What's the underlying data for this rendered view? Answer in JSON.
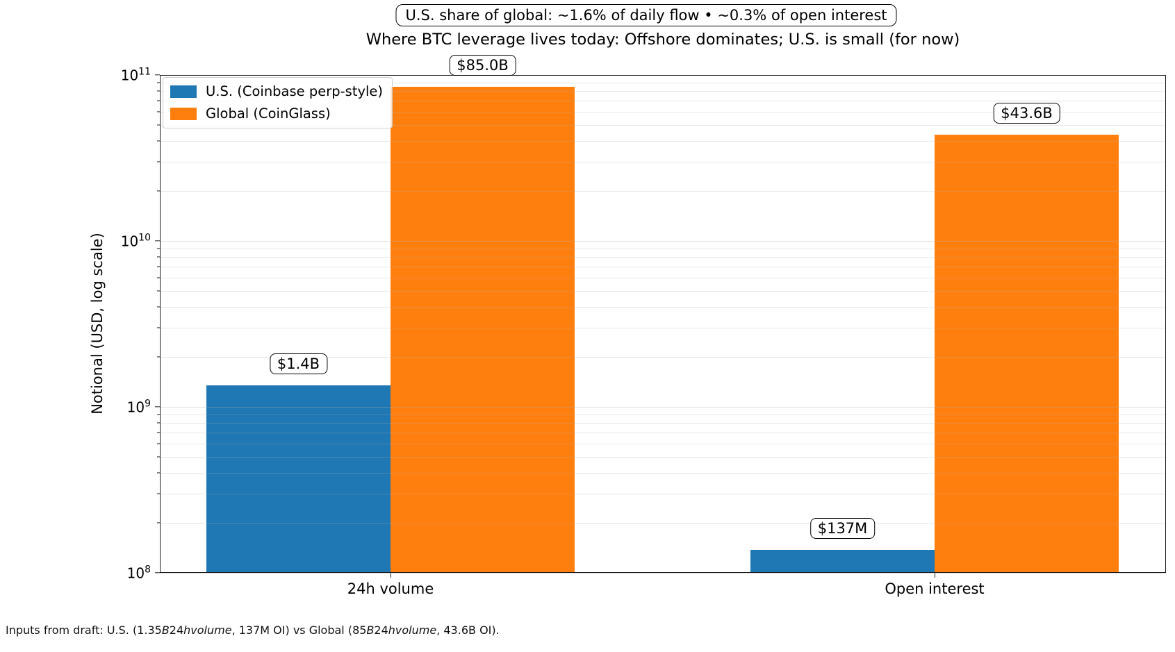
{
  "annotation_top": {
    "text": "U.S. share of global: ~1.6% of daily flow • ~0.3% of open interest"
  },
  "title": "Where BTC leverage lives today: Offshore dominates; U.S. is small (for now)",
  "chart_data": {
    "type": "bar",
    "yscale": "log",
    "ylim": [
      100000000,
      100000000000
    ],
    "ylabel": "Notional (USD, log scale)",
    "grid": "major and minor horizontal gridlines, drawn over bars",
    "legend_position": "upper left",
    "categories": [
      "24h volume",
      "Open interest"
    ],
    "series": [
      {
        "name": "U.S. (Coinbase perp-style)",
        "color": "#1f77b4",
        "values": [
          1350000000,
          137000000
        ],
        "labels": [
          "$1.4B",
          "$137M"
        ]
      },
      {
        "name": "Global (CoinGlass)",
        "color": "#ff7f0e",
        "values": [
          85000000000,
          43600000000
        ],
        "labels": [
          "$85.0B",
          "$43.6B"
        ]
      }
    ],
    "yticks": [
      {
        "base": "10",
        "exp": "8"
      },
      {
        "base": "10",
        "exp": "9"
      },
      {
        "base": "10",
        "exp": "10"
      },
      {
        "base": "10",
        "exp": "11"
      }
    ]
  },
  "footnote": {
    "segments": [
      {
        "text": "Inputs from draft: U.S. (",
        "italic": false
      },
      {
        "text": "1.35",
        "italic": false
      },
      {
        "text": "B",
        "italic": true
      },
      {
        "text": "24",
        "italic": false
      },
      {
        "text": "hvolume",
        "italic": true
      },
      {
        "text": ", 137M OI) vs Global (",
        "italic": false
      },
      {
        "text": "85",
        "italic": false
      },
      {
        "text": "B",
        "italic": true
      },
      {
        "text": "24",
        "italic": false
      },
      {
        "text": "hvolume",
        "italic": true
      },
      {
        "text": ", ",
        "italic": false
      },
      {
        "text": "43.6B OI).",
        "italic": false
      }
    ]
  }
}
